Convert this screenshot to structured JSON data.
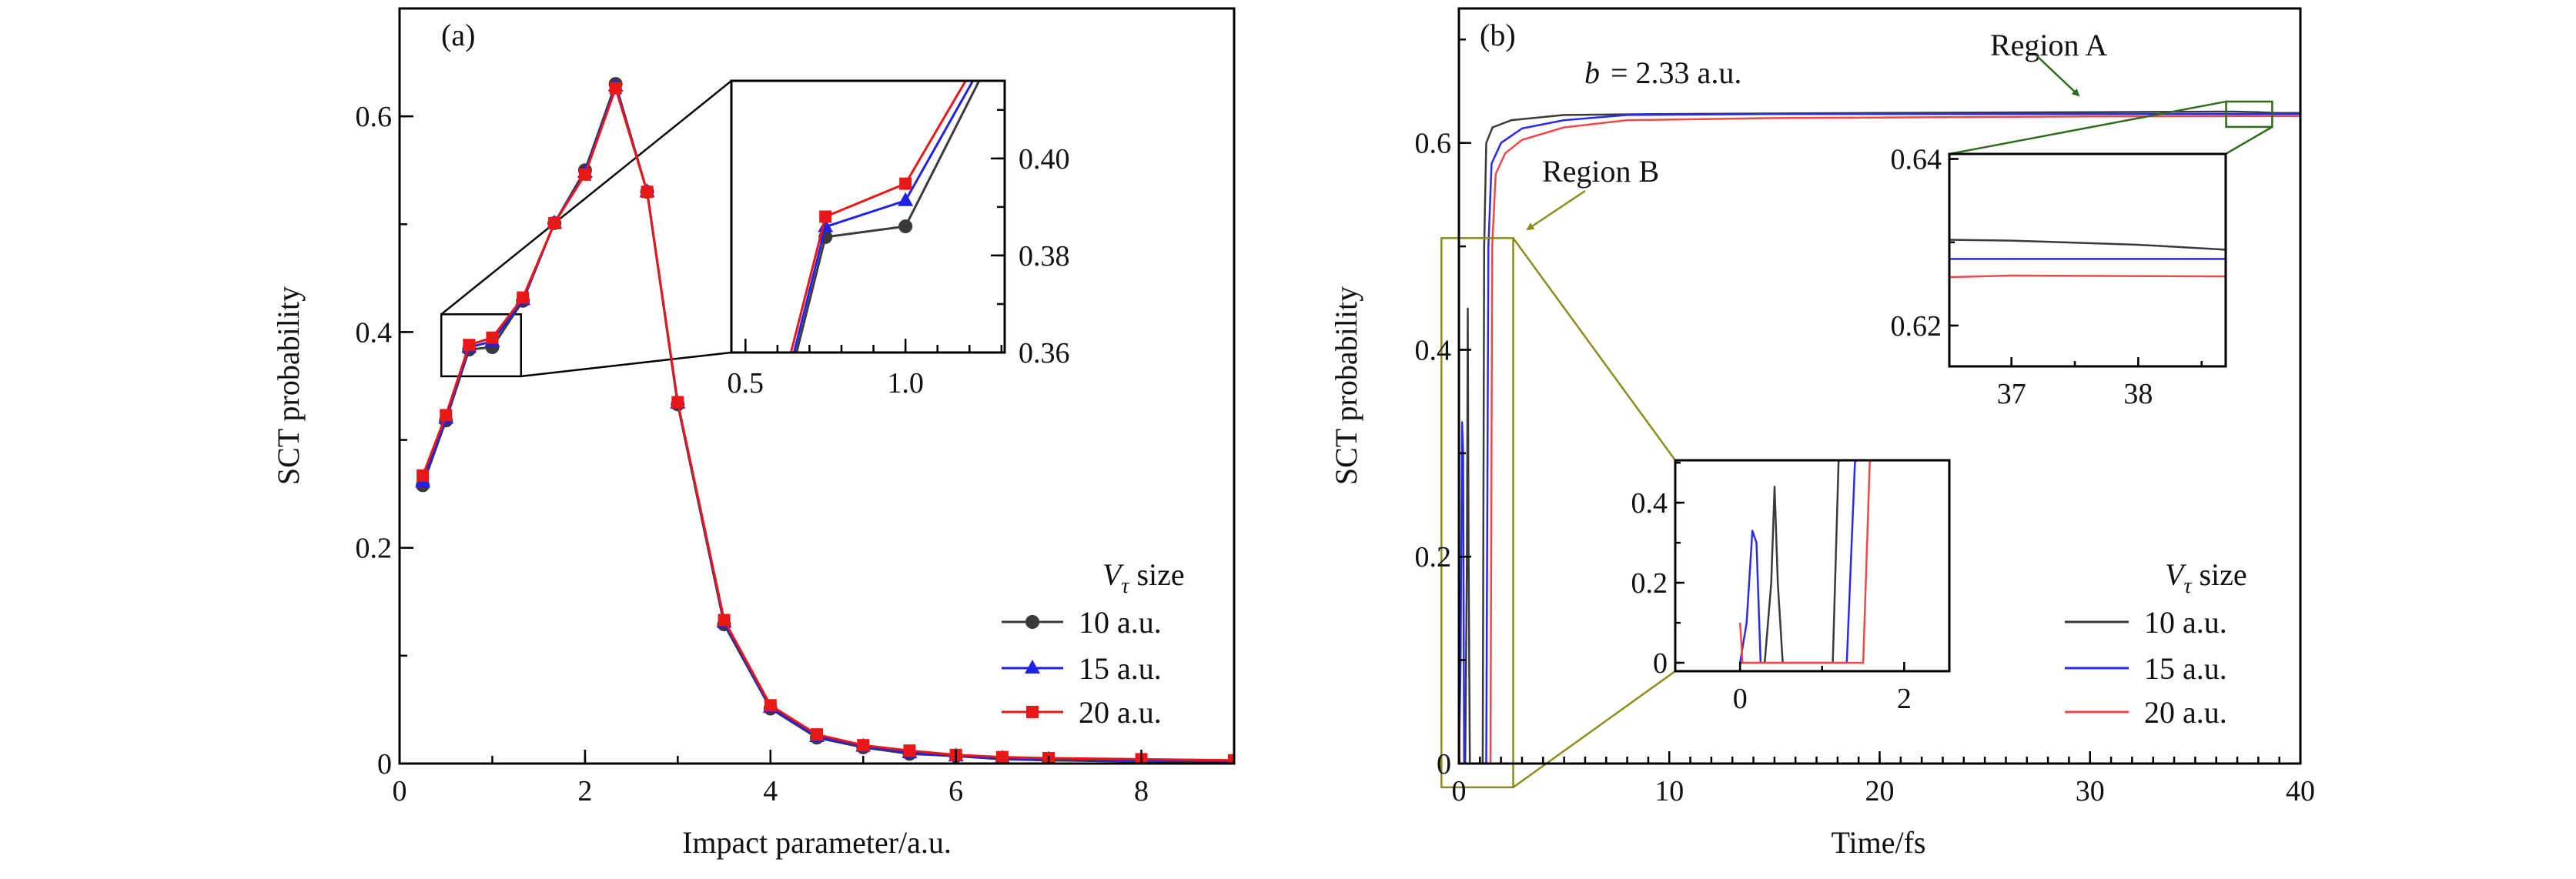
{
  "chart_data": [
    {
      "type": "line",
      "panel_label": "(a)",
      "xlabel": "Impact parameter/a.u.",
      "ylabel": "SCT probability",
      "xlim": [
        0,
        9
      ],
      "ylim": [
        0,
        0.7
      ],
      "x_ticks": [
        0,
        2,
        4,
        6,
        8
      ],
      "x_tick_labels": [
        "0",
        "2",
        "4",
        "6",
        "8"
      ],
      "y_ticks": [
        0,
        0.2,
        0.4,
        0.6
      ],
      "y_tick_labels": [
        "0",
        "0.2",
        "0.4",
        "0.6"
      ],
      "x_minor_step": 1,
      "y_minor_step": 0.1,
      "grid": false,
      "legend_position": "bottom-right",
      "legend_title": {
        "symbol": "V",
        "subscript": "τ",
        "text": "size"
      },
      "x": [
        0.25,
        0.5,
        0.75,
        1.0,
        1.33,
        1.67,
        2.0,
        2.33,
        2.67,
        3.0,
        3.5,
        4.0,
        4.5,
        5.0,
        5.5,
        6.0,
        6.5,
        7.0,
        8.0,
        9.0
      ],
      "series": [
        {
          "name": "10 a.u.",
          "color": "#3a3a3a",
          "marker": "circle",
          "values": [
            0.258,
            0.318,
            0.3838,
            0.386,
            0.429,
            0.501,
            0.55,
            0.63,
            0.53,
            0.333,
            0.129,
            0.051,
            0.024,
            0.015,
            0.009,
            0.007,
            0.004,
            0.003,
            0.002,
            0.001
          ]
        },
        {
          "name": "15 a.u.",
          "color": "#2222e6",
          "marker": "triangle",
          "values": [
            0.261,
            0.32,
            0.3859,
            0.3913,
            0.43,
            0.501,
            0.548,
            0.628,
            0.53,
            0.334,
            0.131,
            0.052,
            0.025,
            0.016,
            0.01,
            0.007,
            0.005,
            0.004,
            0.003,
            0.002
          ]
        },
        {
          "name": "20 a.u.",
          "color": "#e81818",
          "marker": "square",
          "values": [
            0.267,
            0.323,
            0.388,
            0.3948,
            0.432,
            0.501,
            0.546,
            0.626,
            0.53,
            0.335,
            0.133,
            0.054,
            0.027,
            0.017,
            0.012,
            0.008,
            0.006,
            0.005,
            0.004,
            0.003
          ]
        }
      ],
      "inset": {
        "xlim": [
          0.456,
          1.31
        ],
        "ylim": [
          0.36,
          0.416
        ],
        "x_ticks": [
          0.5,
          1.0
        ],
        "x_tick_labels": [
          "0.5",
          "1.0"
        ],
        "y_ticks": [
          0.36,
          0.38,
          0.4
        ],
        "y_tick_labels": [
          "0.36",
          "0.38",
          "0.40"
        ],
        "x_minor_step": 0.1,
        "y_minor_step": 0.01,
        "zoom_region": {
          "x": [
            0.45,
            1.31
          ],
          "y": [
            0.359,
            0.4165
          ]
        }
      }
    },
    {
      "type": "line",
      "panel_label": "(b)",
      "annotation": {
        "symbol": "b",
        "text": "= 2.33 a.u."
      },
      "xlabel": "Time/fs",
      "ylabel": "SCT probability",
      "xlim": [
        0,
        40
      ],
      "ylim": [
        0,
        0.73
      ],
      "x_ticks": [
        0,
        10,
        20,
        30,
        40
      ],
      "x_tick_labels": [
        "0",
        "10",
        "20",
        "30",
        "40"
      ],
      "y_ticks": [
        0,
        0.2,
        0.4,
        0.6
      ],
      "y_tick_labels": [
        "0",
        "0.2",
        "0.4",
        "0.6"
      ],
      "x_minor_step": 1,
      "y_minor_step": 0.1,
      "grid": false,
      "legend_position": "bottom-right",
      "legend_title": {
        "symbol": "V",
        "subscript": "τ",
        "text": "size"
      },
      "series": [
        {
          "name": "10 a.u.",
          "color": "#3a3a3a",
          "points": [
            [
              0,
              0
            ],
            [
              0.3,
              0
            ],
            [
              0.38,
              0.2
            ],
            [
              0.42,
              0.44
            ],
            [
              0.46,
              0.2
            ],
            [
              0.52,
              0
            ],
            [
              1.13,
              0
            ],
            [
              1.2,
              0.5
            ],
            [
              1.3,
              0.6
            ],
            [
              1.6,
              0.615
            ],
            [
              2.5,
              0.622
            ],
            [
              5,
              0.627
            ],
            [
              10,
              0.628
            ],
            [
              20,
              0.629
            ],
            [
              30,
              0.6298
            ],
            [
              36.5,
              0.6303
            ],
            [
              37,
              0.6302
            ],
            [
              38,
              0.6297
            ],
            [
              38.7,
              0.6291
            ],
            [
              40,
              0.629
            ]
          ]
        },
        {
          "name": "15 a.u.",
          "color": "#2a2aee",
          "points": [
            [
              0,
              0
            ],
            [
              0.08,
              0.1
            ],
            [
              0.15,
              0.33
            ],
            [
              0.2,
              0.3
            ],
            [
              0.25,
              0
            ],
            [
              1.3,
              0
            ],
            [
              1.4,
              0.5
            ],
            [
              1.55,
              0.58
            ],
            [
              2,
              0.6
            ],
            [
              3,
              0.614
            ],
            [
              5,
              0.622
            ],
            [
              8,
              0.627
            ],
            [
              15,
              0.628
            ],
            [
              30,
              0.628
            ],
            [
              36.5,
              0.628
            ],
            [
              38.7,
              0.628
            ],
            [
              40,
              0.628
            ]
          ]
        },
        {
          "name": "20 a.u.",
          "color": "#f04848",
          "points": [
            [
              0,
              0.1
            ],
            [
              0.03,
              0
            ],
            [
              1.5,
              0
            ],
            [
              1.58,
              0.5
            ],
            [
              1.75,
              0.57
            ],
            [
              2.2,
              0.59
            ],
            [
              3,
              0.603
            ],
            [
              5,
              0.615
            ],
            [
              8,
              0.622
            ],
            [
              15,
              0.624
            ],
            [
              30,
              0.6257
            ],
            [
              36.5,
              0.6258
            ],
            [
              37,
              0.626
            ],
            [
              38.7,
              0.6259
            ],
            [
              40,
              0.6258
            ]
          ]
        }
      ],
      "inset_a": {
        "label": "Region A",
        "color": "#2f6b1f",
        "xlim": [
          36.51,
          38.69
        ],
        "ylim": [
          0.6151,
          0.6406
        ],
        "x_ticks": [
          37,
          38
        ],
        "x_tick_labels": [
          "37",
          "38"
        ],
        "y_ticks": [
          0.62,
          0.64
        ],
        "y_tick_labels": [
          "0.62",
          "0.64"
        ],
        "x_minor_step": 0.5,
        "y_minor_step": 0.01,
        "zoom_region": {
          "x": [
            36.47,
            38.66
          ],
          "y": [
            0.6155,
            0.64
          ]
        }
      },
      "inset_b": {
        "label": "Region B",
        "color": "#8a8c1c",
        "xlim": [
          -0.79,
          2.55
        ],
        "ylim": [
          -0.021,
          0.506
        ],
        "x_ticks": [
          0,
          2
        ],
        "x_tick_labels": [
          "0",
          "2"
        ],
        "y_ticks": [
          0,
          0.2,
          0.4
        ],
        "y_tick_labels": [
          "0",
          "0.2",
          "0.4"
        ],
        "x_minor_step": 1,
        "y_minor_step": 0.1,
        "zoom_region": {
          "x": [
            -0.83,
            2.58
          ],
          "y": [
            -0.023,
            0.508
          ]
        }
      }
    }
  ]
}
